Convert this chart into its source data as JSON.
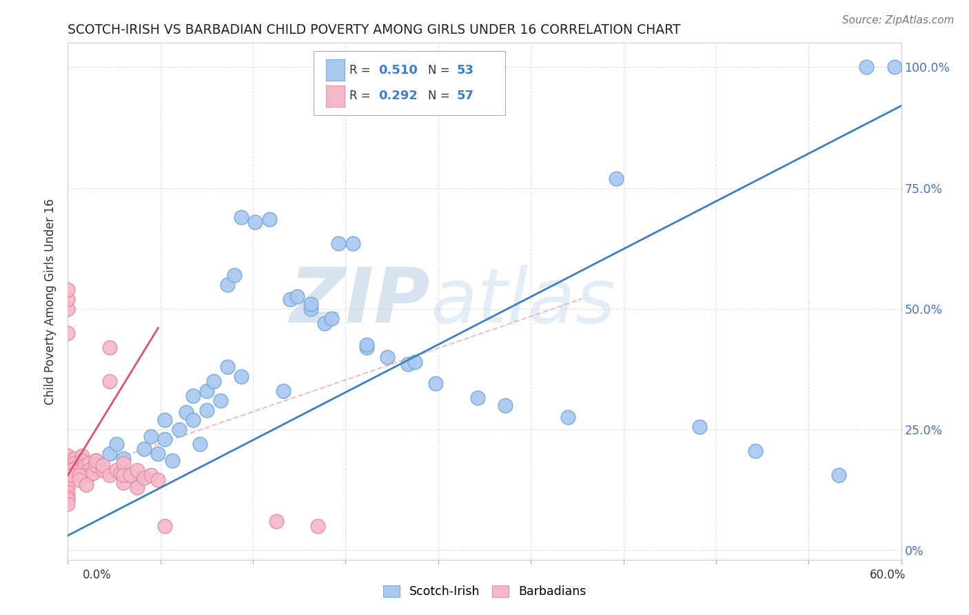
{
  "title": "SCOTCH-IRISH VS BARBADIAN CHILD POVERTY AMONG GIRLS UNDER 16 CORRELATION CHART",
  "source": "Source: ZipAtlas.com",
  "ylabel": "Child Poverty Among Girls Under 16",
  "xlim": [
    0,
    0.6
  ],
  "ylim": [
    -0.02,
    1.05
  ],
  "watermark_zip": "ZIP",
  "watermark_atlas": "atlas",
  "blue_color": "#a8c8f0",
  "blue_edge_color": "#7aaad8",
  "pink_color": "#f5b8c8",
  "pink_edge_color": "#e890a8",
  "blue_line_color": "#3a7dc8",
  "pink_line_color": "#e05070",
  "pink_dash_color": "#e8a0b0",
  "background_color": "#ffffff",
  "grid_color": "#e0e0e0",
  "scotch_irish_x": [
    0.195,
    0.205,
    0.125,
    0.135,
    0.145,
    0.115,
    0.12,
    0.16,
    0.165,
    0.175,
    0.175,
    0.185,
    0.19,
    0.215,
    0.215,
    0.23,
    0.245,
    0.25,
    0.155,
    0.265,
    0.295,
    0.315,
    0.36,
    0.455,
    0.495,
    0.555,
    0.02,
    0.03,
    0.035,
    0.04,
    0.04,
    0.05,
    0.055,
    0.06,
    0.065,
    0.07,
    0.07,
    0.075,
    0.08,
    0.085,
    0.09,
    0.09,
    0.095,
    0.1,
    0.1,
    0.105,
    0.11,
    0.115,
    0.125,
    0.575,
    0.595,
    0.395
  ],
  "scotch_irish_y": [
    0.635,
    0.635,
    0.69,
    0.68,
    0.685,
    0.55,
    0.57,
    0.52,
    0.525,
    0.5,
    0.51,
    0.47,
    0.48,
    0.42,
    0.425,
    0.4,
    0.385,
    0.39,
    0.33,
    0.345,
    0.315,
    0.3,
    0.275,
    0.255,
    0.205,
    0.155,
    0.185,
    0.2,
    0.22,
    0.16,
    0.19,
    0.14,
    0.21,
    0.235,
    0.2,
    0.23,
    0.27,
    0.185,
    0.25,
    0.285,
    0.27,
    0.32,
    0.22,
    0.29,
    0.33,
    0.35,
    0.31,
    0.38,
    0.36,
    1.0,
    1.0,
    0.77
  ],
  "barbadian_x": [
    0.0,
    0.0,
    0.0,
    0.0,
    0.0,
    0.0,
    0.0,
    0.0,
    0.0,
    0.0,
    0.005,
    0.005,
    0.005,
    0.005,
    0.01,
    0.01,
    0.01,
    0.012,
    0.015,
    0.015,
    0.015,
    0.018,
    0.02,
    0.02,
    0.025,
    0.025,
    0.03,
    0.03,
    0.03,
    0.035,
    0.038,
    0.04,
    0.04,
    0.04,
    0.045,
    0.05,
    0.05,
    0.055,
    0.06,
    0.065,
    0.0,
    0.0,
    0.0,
    0.0,
    0.0,
    0.0,
    0.0,
    0.003,
    0.003,
    0.008,
    0.008,
    0.013,
    0.07,
    0.15,
    0.18
  ],
  "barbadian_y": [
    0.185,
    0.195,
    0.17,
    0.18,
    0.16,
    0.15,
    0.145,
    0.14,
    0.13,
    0.12,
    0.19,
    0.18,
    0.17,
    0.155,
    0.195,
    0.185,
    0.17,
    0.175,
    0.18,
    0.165,
    0.155,
    0.16,
    0.175,
    0.185,
    0.165,
    0.175,
    0.35,
    0.42,
    0.155,
    0.165,
    0.16,
    0.14,
    0.18,
    0.155,
    0.155,
    0.13,
    0.165,
    0.15,
    0.155,
    0.145,
    0.45,
    0.5,
    0.52,
    0.54,
    0.11,
    0.105,
    0.095,
    0.165,
    0.155,
    0.155,
    0.145,
    0.135,
    0.05,
    0.06,
    0.05
  ],
  "blue_trend": [
    0.0,
    0.6,
    0.03,
    0.92
  ],
  "pink_trend": [
    0.0,
    0.065,
    0.155,
    0.46
  ],
  "pink_dash": [
    0.0,
    0.37,
    0.155,
    0.52
  ]
}
